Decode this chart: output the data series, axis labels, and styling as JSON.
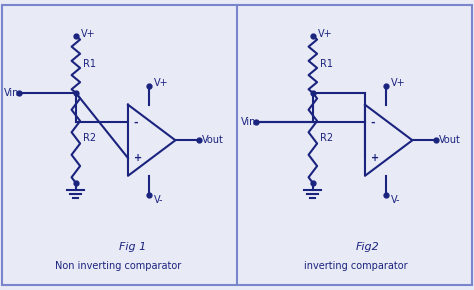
{
  "background_color": "#e8eaf6",
  "line_color": "#1a237e",
  "line_width": 1.5,
  "fig1_title": "Fig 1",
  "fig1_label": "Non inverting comparator",
  "fig2_title": "Fig2",
  "fig2_label": "inverting comparator",
  "border_color": "#7986cb",
  "divider_color": "#7986cb"
}
